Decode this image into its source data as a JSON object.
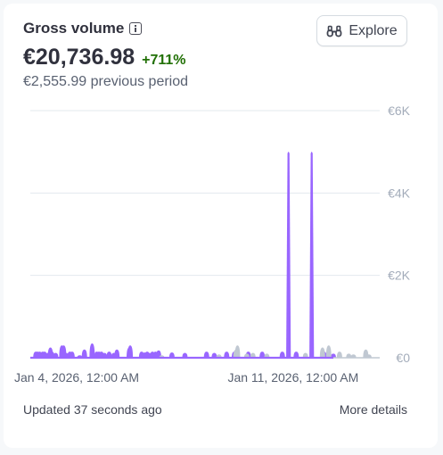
{
  "card": {
    "title": "Gross volume",
    "amount": "€20,736.98",
    "change": "+711%",
    "previous": "€2,555.99 previous period",
    "explore_label": "Explore",
    "updated": "Updated 37 seconds ago",
    "more_details": "More details"
  },
  "colors": {
    "current": "#9966ff",
    "previous": "#c0c8d2",
    "grid": "#e3e8ee",
    "positive": "#217005"
  },
  "chart_data": {
    "type": "area",
    "title": "",
    "xlabel": "",
    "ylabel": "",
    "ylim": [
      0,
      6000
    ],
    "y_ticks": [
      "€6K",
      "€4K",
      "€2K",
      "€0"
    ],
    "y_tick_values": [
      6000,
      4000,
      2000,
      0
    ],
    "x_ticks": [
      "Jan 4, 2026, 12:00 AM",
      "Jan 11, 2026, 12:00 AM"
    ],
    "x_tick_positions": [
      1.0,
      8.0
    ],
    "xlim": [
      -0.5,
      10.8
    ],
    "grid": true,
    "series": [
      {
        "name": "",
        "role": "current",
        "points": [
          [
            -0.32,
            150
          ],
          [
            -0.27,
            150
          ],
          [
            -0.2,
            150
          ],
          [
            -0.1,
            150
          ],
          [
            -0.04,
            150
          ],
          [
            0.06,
            120
          ],
          [
            0.15,
            250
          ],
          [
            0.2,
            150
          ],
          [
            0.32,
            120
          ],
          [
            0.52,
            300
          ],
          [
            0.58,
            300
          ],
          [
            0.66,
            120
          ],
          [
            0.78,
            150
          ],
          [
            0.85,
            150
          ],
          [
            1.1,
            60
          ],
          [
            1.25,
            200
          ],
          [
            1.5,
            350
          ],
          [
            1.65,
            150
          ],
          [
            1.72,
            150
          ],
          [
            1.8,
            150
          ],
          [
            1.9,
            120
          ],
          [
            2.05,
            150
          ],
          [
            2.2,
            120
          ],
          [
            2.3,
            200
          ],
          [
            2.7,
            250
          ],
          [
            2.73,
            300
          ],
          [
            3.1,
            150
          ],
          [
            3.2,
            130
          ],
          [
            3.28,
            150
          ],
          [
            3.35,
            120
          ],
          [
            3.45,
            150
          ],
          [
            3.55,
            150
          ],
          [
            3.65,
            180
          ],
          [
            4.08,
            130
          ],
          [
            4.5,
            120
          ],
          [
            5.2,
            150
          ],
          [
            5.45,
            120
          ],
          [
            5.85,
            150
          ],
          [
            6.1,
            150
          ],
          [
            6.55,
            150
          ],
          [
            7.0,
            150
          ],
          [
            7.65,
            150
          ],
          [
            7.85,
            5000
          ],
          [
            8.1,
            150
          ],
          [
            8.6,
            5000
          ],
          [
            9.0,
            150
          ],
          [
            9.3,
            100
          ]
        ]
      },
      {
        "name": "",
        "role": "previous",
        "points": [
          [
            3.75,
            60
          ],
          [
            5.6,
            80
          ],
          [
            6.15,
            200
          ],
          [
            6.2,
            300
          ],
          [
            6.5,
            100
          ],
          [
            6.7,
            120
          ],
          [
            7.15,
            100
          ],
          [
            8.4,
            120
          ],
          [
            8.95,
            250
          ],
          [
            9.15,
            300
          ],
          [
            9.5,
            150
          ],
          [
            9.8,
            100
          ],
          [
            9.95,
            80
          ],
          [
            10.35,
            200
          ],
          [
            10.45,
            80
          ]
        ]
      }
    ]
  }
}
